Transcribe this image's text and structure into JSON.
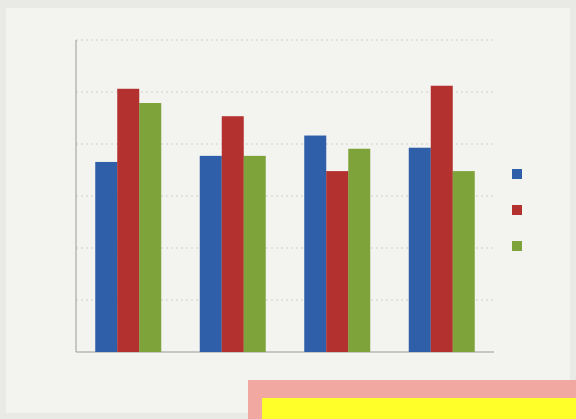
{
  "chart_data": {
    "type": "bar",
    "categories": [
      "",
      "",
      "",
      ""
    ],
    "series": [
      {
        "name": "",
        "color": "#2f5fa8",
        "values": [
          187,
          193,
          213,
          201
        ]
      },
      {
        "name": "",
        "color": "#b3312f",
        "values": [
          259,
          232,
          178,
          262
        ]
      },
      {
        "name": "",
        "color": "#7fa33b",
        "values": [
          245,
          193,
          200,
          178
        ]
      }
    ],
    "y_ticks": [
      "",
      "",
      "",
      "",
      "",
      "",
      ""
    ],
    "ylim": [
      0,
      307
    ],
    "grid": true,
    "legend_position": "right",
    "title": "",
    "xlabel": "",
    "ylabel": ""
  },
  "overlay": {
    "color": "#ffff2a",
    "border_color": "#f0a8a0"
  }
}
